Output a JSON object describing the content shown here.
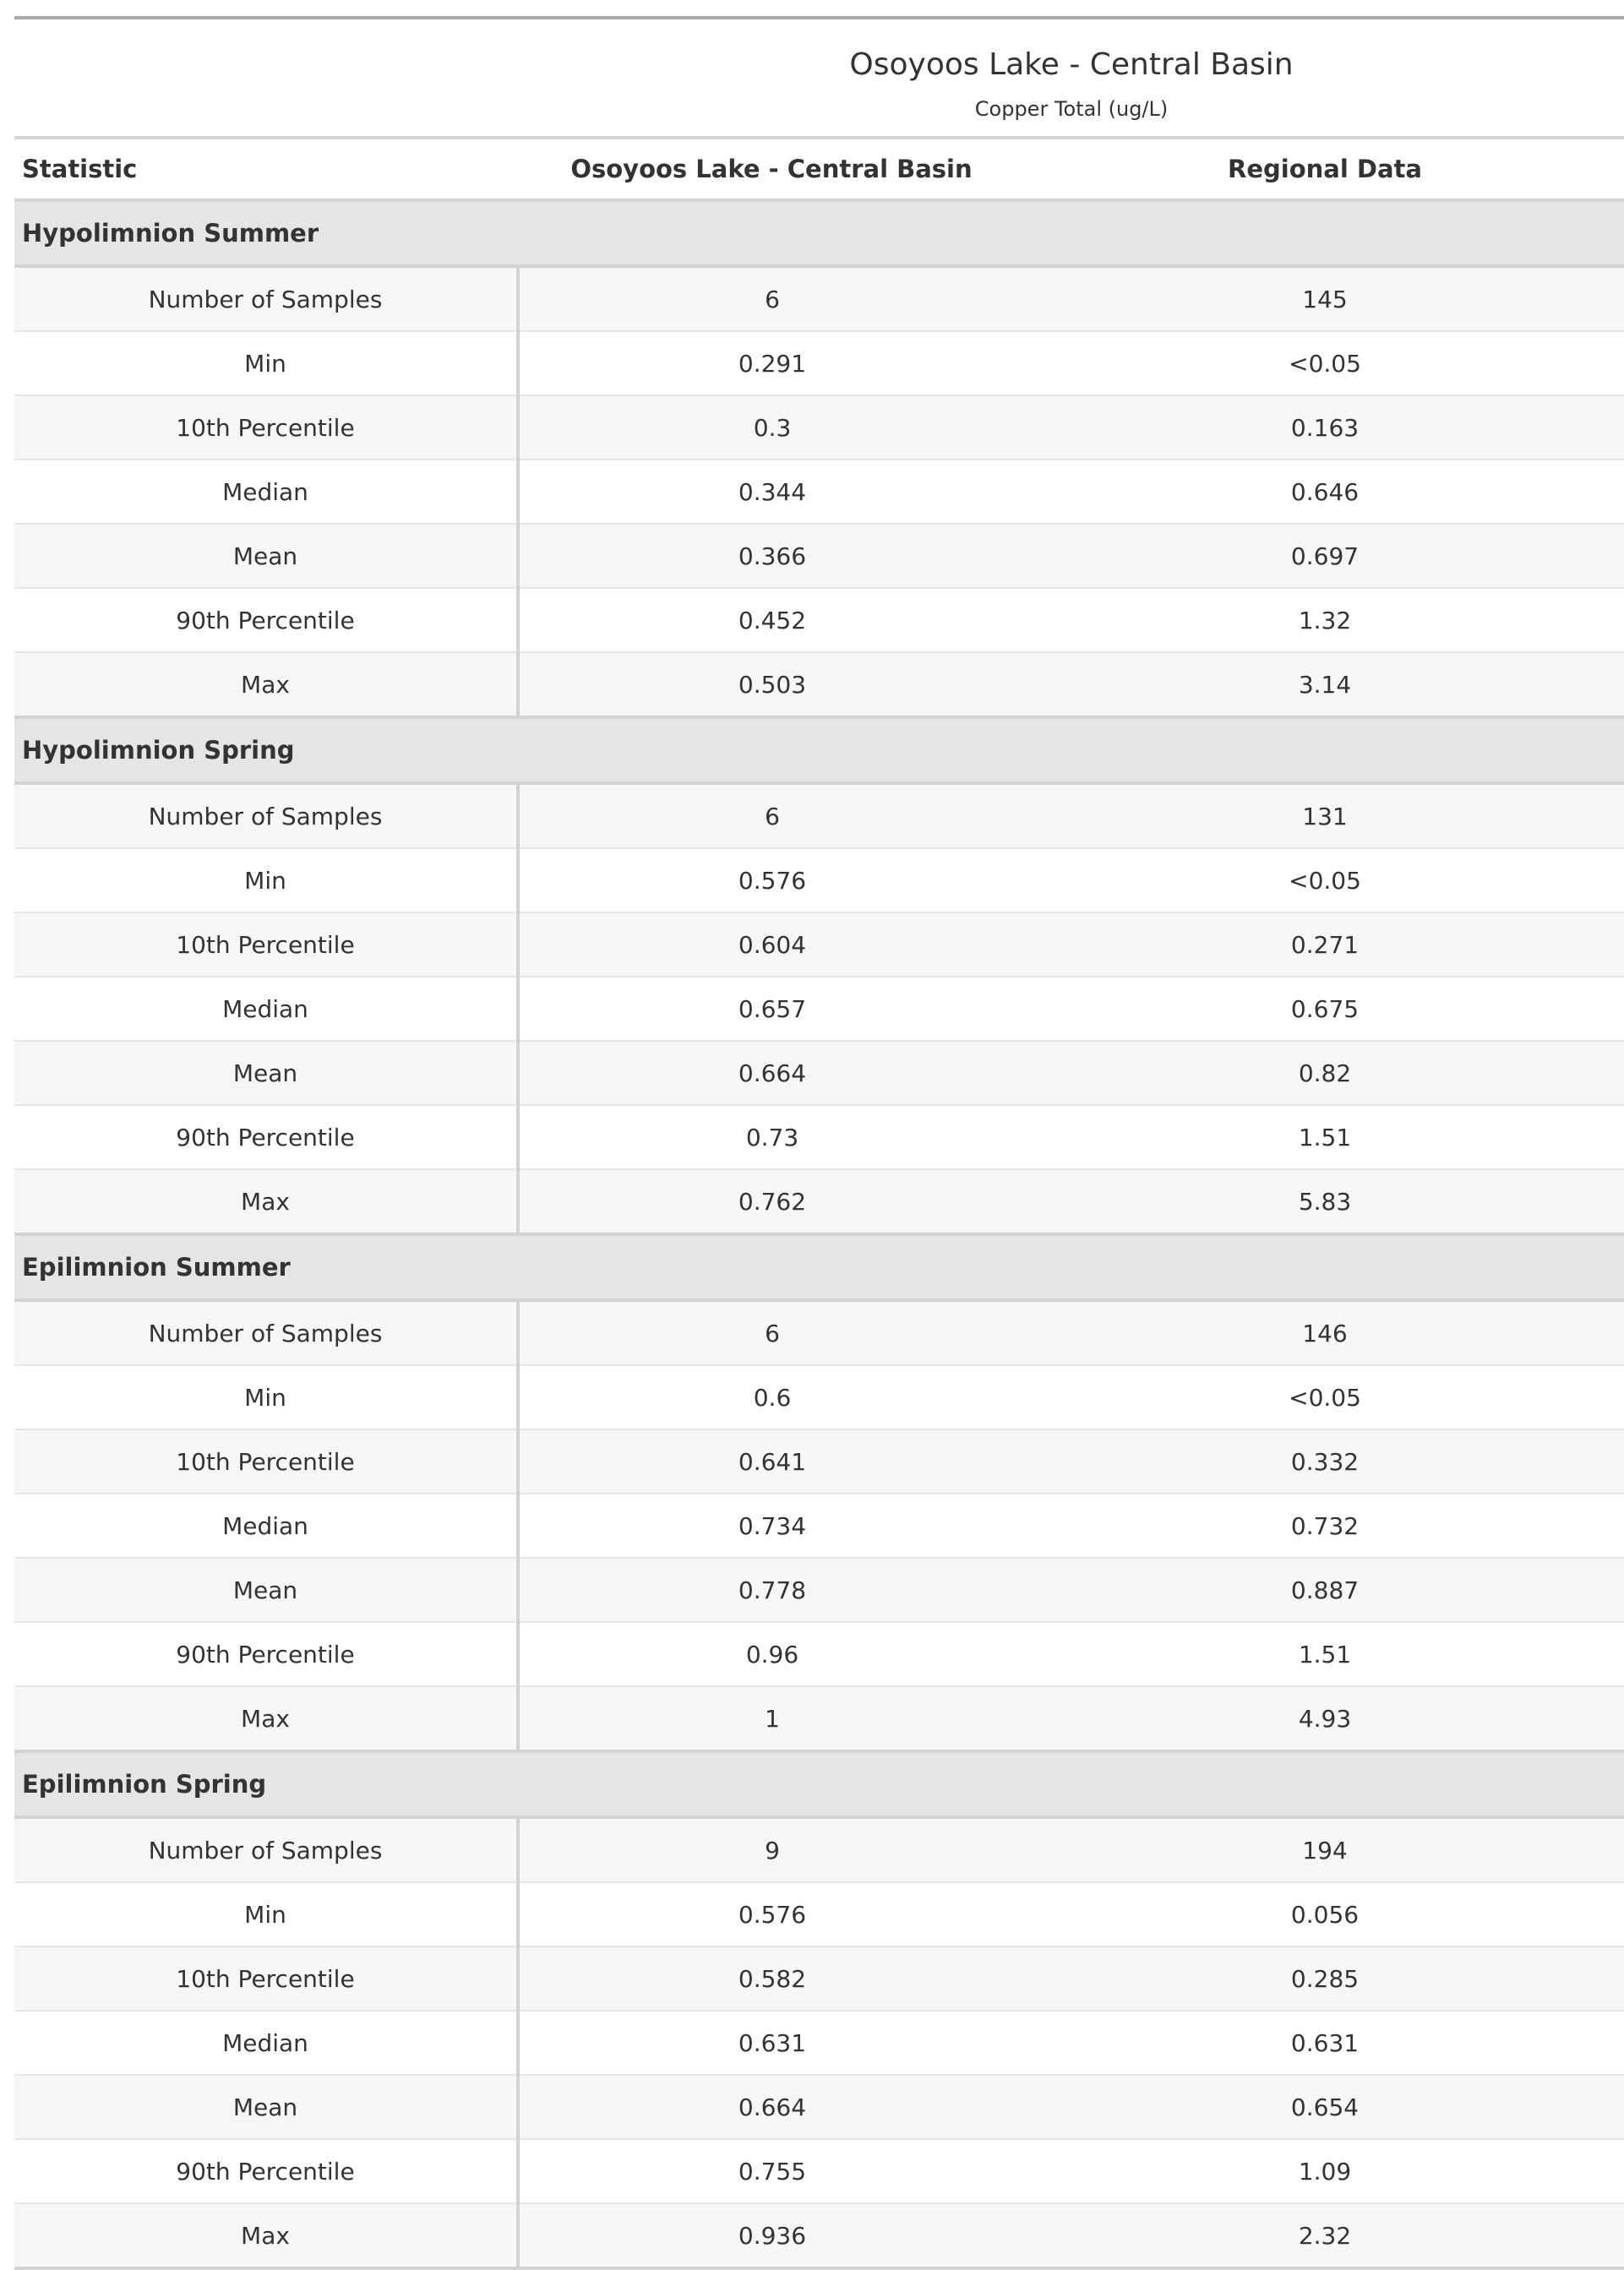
{
  "table": {
    "title": "Osoyoos Lake - Central Basin",
    "subtitle": "Copper Total (ug/L)",
    "columns": [
      "Statistic",
      "Osoyoos Lake - Central Basin",
      "Regional Data"
    ],
    "groups": [
      {
        "name": "Hypolimnion Summer",
        "rows": [
          {
            "statistic": "Number of Samples",
            "lake": "6",
            "regional": "145"
          },
          {
            "statistic": "Min",
            "lake": "0.291",
            "regional": "<0.05"
          },
          {
            "statistic": "10th Percentile",
            "lake": "0.3",
            "regional": "0.163"
          },
          {
            "statistic": "Median",
            "lake": "0.344",
            "regional": "0.646"
          },
          {
            "statistic": "Mean",
            "lake": "0.366",
            "regional": "0.697"
          },
          {
            "statistic": "90th Percentile",
            "lake": "0.452",
            "regional": "1.32"
          },
          {
            "statistic": "Max",
            "lake": "0.503",
            "regional": "3.14"
          }
        ]
      },
      {
        "name": "Hypolimnion Spring",
        "rows": [
          {
            "statistic": "Number of Samples",
            "lake": "6",
            "regional": "131"
          },
          {
            "statistic": "Min",
            "lake": "0.576",
            "regional": "<0.05"
          },
          {
            "statistic": "10th Percentile",
            "lake": "0.604",
            "regional": "0.271"
          },
          {
            "statistic": "Median",
            "lake": "0.657",
            "regional": "0.675"
          },
          {
            "statistic": "Mean",
            "lake": "0.664",
            "regional": "0.82"
          },
          {
            "statistic": "90th Percentile",
            "lake": "0.73",
            "regional": "1.51"
          },
          {
            "statistic": "Max",
            "lake": "0.762",
            "regional": "5.83"
          }
        ]
      },
      {
        "name": "Epilimnion Summer",
        "rows": [
          {
            "statistic": "Number of Samples",
            "lake": "6",
            "regional": "146"
          },
          {
            "statistic": "Min",
            "lake": "0.6",
            "regional": "<0.05"
          },
          {
            "statistic": "10th Percentile",
            "lake": "0.641",
            "regional": "0.332"
          },
          {
            "statistic": "Median",
            "lake": "0.734",
            "regional": "0.732"
          },
          {
            "statistic": "Mean",
            "lake": "0.778",
            "regional": "0.887"
          },
          {
            "statistic": "90th Percentile",
            "lake": "0.96",
            "regional": "1.51"
          },
          {
            "statistic": "Max",
            "lake": "1",
            "regional": "4.93"
          }
        ]
      },
      {
        "name": "Epilimnion Spring",
        "rows": [
          {
            "statistic": "Number of Samples",
            "lake": "9",
            "regional": "194"
          },
          {
            "statistic": "Min",
            "lake": "0.576",
            "regional": "0.056"
          },
          {
            "statistic": "10th Percentile",
            "lake": "0.582",
            "regional": "0.285"
          },
          {
            "statistic": "Median",
            "lake": "0.631",
            "regional": "0.631"
          },
          {
            "statistic": "Mean",
            "lake": "0.664",
            "regional": "0.654"
          },
          {
            "statistic": "90th Percentile",
            "lake": "0.755",
            "regional": "1.09"
          },
          {
            "statistic": "Max",
            "lake": "0.936",
            "regional": "2.32"
          }
        ]
      }
    ]
  },
  "chart_data": {
    "type": "table",
    "title": "Osoyoos Lake - Central Basin",
    "subtitle": "Copper Total (ug/L)",
    "columns": [
      "Statistic",
      "Osoyoos Lake - Central Basin",
      "Regional Data"
    ],
    "row_groups": [
      "Hypolimnion Summer",
      "Hypolimnion Spring",
      "Epilimnion Summer",
      "Epilimnion Spring"
    ]
  },
  "colors": {
    "group_background": "#e5e5e5",
    "stripe_background": "#f6f6f6",
    "border": "#d3d3d3",
    "text": "#333333"
  }
}
